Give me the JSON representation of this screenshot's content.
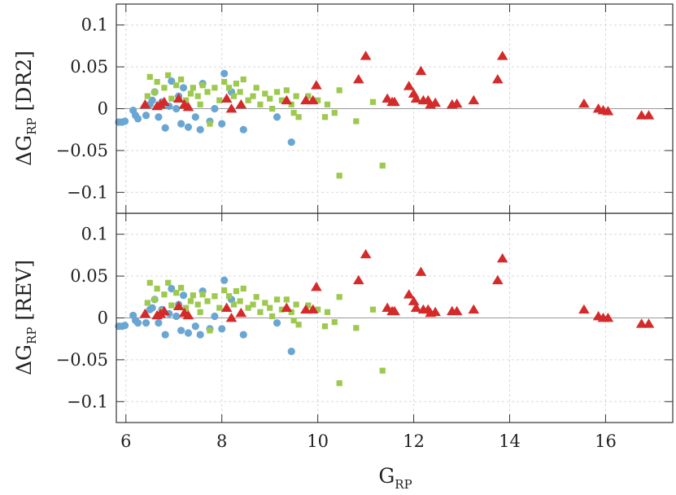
{
  "chart_data": [
    {
      "type": "scatter",
      "panel": "top",
      "ylabel": {
        "main": "ΔG",
        "sub": "RP",
        "suffix": " [DR2]"
      },
      "xlabel": "",
      "xlim": [
        5.8,
        17.4
      ],
      "ylim": [
        -0.125,
        0.125
      ],
      "xticks": [
        6,
        8,
        10,
        12,
        14,
        16
      ],
      "yticks": [
        0.1,
        0.05,
        0,
        -0.05,
        -0.1
      ],
      "ytick_labels": [
        "0.1",
        "0.05",
        "0",
        "−0.05",
        "−0.1"
      ],
      "grid": true,
      "zero_line": true,
      "series": [
        {
          "marker": "circle",
          "color": "#6aa6d3",
          "points": [
            [
              5.85,
              -0.016
            ],
            [
              5.92,
              -0.016
            ],
            [
              5.98,
              -0.015
            ],
            [
              6.15,
              -0.002
            ],
            [
              6.2,
              -0.008
            ],
            [
              6.25,
              -0.012
            ],
            [
              6.42,
              -0.008
            ],
            [
              6.5,
              0.005
            ],
            [
              6.55,
              0.01
            ],
            [
              6.6,
              0.02
            ],
            [
              6.68,
              -0.01
            ],
            [
              6.75,
              0.008
            ],
            [
              6.82,
              -0.023
            ],
            [
              6.9,
              0.003
            ],
            [
              6.95,
              0.033
            ],
            [
              7.05,
              0.0
            ],
            [
              7.1,
              0.015
            ],
            [
              7.15,
              -0.018
            ],
            [
              7.2,
              0.025
            ],
            [
              7.3,
              -0.022
            ],
            [
              7.45,
              -0.01
            ],
            [
              7.55,
              -0.025
            ],
            [
              7.6,
              0.03
            ],
            [
              7.75,
              -0.015
            ],
            [
              7.85,
              0.0
            ],
            [
              8.0,
              -0.018
            ],
            [
              8.05,
              0.042
            ],
            [
              8.2,
              0.02
            ],
            [
              8.45,
              -0.025
            ],
            [
              9.15,
              -0.01
            ],
            [
              9.45,
              -0.04
            ]
          ]
        },
        {
          "marker": "square",
          "color": "#9dc94f",
          "points": [
            [
              6.45,
              0.015
            ],
            [
              6.5,
              0.038
            ],
            [
              6.6,
              0.02
            ],
            [
              6.65,
              0.032
            ],
            [
              6.75,
              0.005
            ],
            [
              6.8,
              0.025
            ],
            [
              6.88,
              0.04
            ],
            [
              6.95,
              0.012
            ],
            [
              7.05,
              0.028
            ],
            [
              7.15,
              0.035
            ],
            [
              7.25,
              0.01
            ],
            [
              7.35,
              0.018
            ],
            [
              7.4,
              0.025
            ],
            [
              7.5,
              0.015
            ],
            [
              7.55,
              0.005
            ],
            [
              7.6,
              0.028
            ],
            [
              7.7,
              0.02
            ],
            [
              7.75,
              -0.018
            ],
            [
              7.85,
              0.025
            ],
            [
              7.95,
              0.01
            ],
            [
              8.05,
              0.032
            ],
            [
              8.15,
              0.025
            ],
            [
              8.25,
              0.015
            ],
            [
              8.3,
              0.03
            ],
            [
              8.38,
              0.02
            ],
            [
              8.45,
              0.035
            ],
            [
              8.55,
              0.01
            ],
            [
              8.65,
              0.015
            ],
            [
              8.72,
              0.025
            ],
            [
              8.8,
              0.005
            ],
            [
              8.9,
              0.018
            ],
            [
              9.0,
              0.012
            ],
            [
              9.05,
              0.0
            ],
            [
              9.15,
              0.02
            ],
            [
              9.25,
              0.01
            ],
            [
              9.35,
              0.022
            ],
            [
              9.45,
              0.005
            ],
            [
              9.5,
              -0.005
            ],
            [
              9.55,
              0.015
            ],
            [
              9.6,
              -0.01
            ],
            [
              9.8,
              0.015
            ],
            [
              10.0,
              0.01
            ],
            [
              10.15,
              -0.01
            ],
            [
              10.2,
              0.005
            ],
            [
              10.35,
              -0.005
            ],
            [
              10.45,
              0.022
            ],
            [
              10.45,
              -0.08
            ],
            [
              10.8,
              -0.015
            ],
            [
              11.15,
              0.008
            ],
            [
              11.35,
              -0.068
            ]
          ]
        },
        {
          "marker": "triangle",
          "color": "#d42a2a",
          "points": [
            [
              6.4,
              0.005
            ],
            [
              6.65,
              0.003
            ],
            [
              6.72,
              0.005
            ],
            [
              6.8,
              0.008
            ],
            [
              7.1,
              0.012
            ],
            [
              7.22,
              0.005
            ],
            [
              7.3,
              0.002
            ],
            [
              8.1,
              0.012
            ],
            [
              8.2,
              0.0
            ],
            [
              8.4,
              0.005
            ],
            [
              9.35,
              0.01
            ],
            [
              9.75,
              0.01
            ],
            [
              9.9,
              0.01
            ],
            [
              9.97,
              0.028
            ],
            [
              10.85,
              0.035
            ],
            [
              11.0,
              0.063
            ],
            [
              11.45,
              0.012
            ],
            [
              11.55,
              0.008
            ],
            [
              11.6,
              0.008
            ],
            [
              11.9,
              0.027
            ],
            [
              12.0,
              0.018
            ],
            [
              12.05,
              0.012
            ],
            [
              12.15,
              0.045
            ],
            [
              12.2,
              0.01
            ],
            [
              12.3,
              0.01
            ],
            [
              12.35,
              0.005
            ],
            [
              12.45,
              0.007
            ],
            [
              12.8,
              0.005
            ],
            [
              12.9,
              0.006
            ],
            [
              13.25,
              0.01
            ],
            [
              13.75,
              0.035
            ],
            [
              13.85,
              0.063
            ],
            [
              15.55,
              0.006
            ],
            [
              15.85,
              0.0
            ],
            [
              15.95,
              -0.002
            ],
            [
              16.05,
              -0.003
            ],
            [
              16.75,
              -0.008
            ],
            [
              16.9,
              -0.008
            ]
          ]
        }
      ]
    },
    {
      "type": "scatter",
      "panel": "bottom",
      "ylabel": {
        "main": "ΔG",
        "sub": "RP",
        "suffix": " [REV]"
      },
      "xlabel": {
        "main": "G",
        "sub": "RP"
      },
      "xlim": [
        5.8,
        17.4
      ],
      "ylim": [
        -0.125,
        0.125
      ],
      "xticks": [
        6,
        8,
        10,
        12,
        14,
        16
      ],
      "xtick_labels": [
        "6",
        "8",
        "10",
        "12",
        "14",
        "16"
      ],
      "yticks": [
        0.1,
        0.05,
        0,
        -0.05,
        -0.1
      ],
      "ytick_labels": [
        "0.1",
        "0.05",
        "0",
        "−0.05",
        "−0.1"
      ],
      "grid": true,
      "zero_line": true,
      "series": [
        {
          "marker": "circle",
          "color": "#6aa6d3",
          "points": [
            [
              5.85,
              -0.01
            ],
            [
              5.92,
              -0.01
            ],
            [
              5.98,
              -0.009
            ],
            [
              6.15,
              0.003
            ],
            [
              6.2,
              -0.003
            ],
            [
              6.25,
              -0.006
            ],
            [
              6.42,
              -0.006
            ],
            [
              6.5,
              0.01
            ],
            [
              6.55,
              0.012
            ],
            [
              6.6,
              0.022
            ],
            [
              6.68,
              -0.006
            ],
            [
              6.75,
              0.01
            ],
            [
              6.82,
              -0.02
            ],
            [
              6.9,
              0.005
            ],
            [
              6.95,
              0.035
            ],
            [
              7.05,
              0.002
            ],
            [
              7.1,
              0.016
            ],
            [
              7.15,
              -0.015
            ],
            [
              7.2,
              0.027
            ],
            [
              7.3,
              -0.018
            ],
            [
              7.45,
              -0.01
            ],
            [
              7.55,
              -0.02
            ],
            [
              7.6,
              0.032
            ],
            [
              7.75,
              -0.013
            ],
            [
              7.85,
              0.002
            ],
            [
              8.0,
              -0.013
            ],
            [
              8.05,
              0.045
            ],
            [
              8.2,
              0.022
            ],
            [
              8.45,
              -0.02
            ],
            [
              9.15,
              -0.006
            ],
            [
              9.45,
              -0.04
            ]
          ]
        },
        {
          "marker": "square",
          "color": "#9dc94f",
          "points": [
            [
              6.45,
              0.018
            ],
            [
              6.5,
              0.042
            ],
            [
              6.6,
              0.022
            ],
            [
              6.65,
              0.035
            ],
            [
              6.75,
              0.008
            ],
            [
              6.8,
              0.028
            ],
            [
              6.88,
              0.042
            ],
            [
              6.95,
              0.015
            ],
            [
              7.05,
              0.03
            ],
            [
              7.15,
              0.036
            ],
            [
              7.25,
              0.012
            ],
            [
              7.35,
              0.02
            ],
            [
              7.4,
              0.027
            ],
            [
              7.5,
              0.016
            ],
            [
              7.55,
              0.007
            ],
            [
              7.6,
              0.028
            ],
            [
              7.7,
              0.02
            ],
            [
              7.75,
              -0.015
            ],
            [
              7.85,
              0.026
            ],
            [
              7.95,
              0.012
            ],
            [
              8.05,
              0.033
            ],
            [
              8.15,
              0.026
            ],
            [
              8.25,
              0.016
            ],
            [
              8.3,
              0.032
            ],
            [
              8.38,
              0.02
            ],
            [
              8.45,
              0.035
            ],
            [
              8.55,
              0.012
            ],
            [
              8.65,
              0.016
            ],
            [
              8.72,
              0.025
            ],
            [
              8.8,
              0.007
            ],
            [
              8.9,
              0.018
            ],
            [
              9.0,
              0.012
            ],
            [
              9.05,
              0.002
            ],
            [
              9.15,
              0.022
            ],
            [
              9.25,
              0.01
            ],
            [
              9.35,
              0.022
            ],
            [
              9.45,
              0.007
            ],
            [
              9.5,
              -0.003
            ],
            [
              9.55,
              0.016
            ],
            [
              9.6,
              -0.008
            ],
            [
              9.8,
              0.015
            ],
            [
              10.0,
              0.01
            ],
            [
              10.15,
              -0.01
            ],
            [
              10.2,
              0.007
            ],
            [
              10.35,
              -0.005
            ],
            [
              10.45,
              0.025
            ],
            [
              10.45,
              -0.078
            ],
            [
              10.8,
              -0.012
            ],
            [
              11.15,
              0.01
            ],
            [
              11.35,
              -0.063
            ]
          ]
        },
        {
          "marker": "triangle",
          "color": "#d42a2a",
          "points": [
            [
              6.4,
              0.005
            ],
            [
              6.65,
              0.003
            ],
            [
              6.72,
              0.005
            ],
            [
              6.8,
              0.008
            ],
            [
              7.1,
              0.014
            ],
            [
              7.22,
              0.006
            ],
            [
              7.3,
              0.003
            ],
            [
              8.1,
              0.012
            ],
            [
              8.2,
              0.0
            ],
            [
              8.4,
              0.006
            ],
            [
              9.35,
              0.012
            ],
            [
              9.75,
              0.01
            ],
            [
              9.9,
              0.01
            ],
            [
              9.97,
              0.037
            ],
            [
              10.85,
              0.045
            ],
            [
              11.0,
              0.076
            ],
            [
              11.45,
              0.012
            ],
            [
              11.55,
              0.008
            ],
            [
              11.6,
              0.008
            ],
            [
              11.9,
              0.028
            ],
            [
              12.0,
              0.02
            ],
            [
              12.05,
              0.012
            ],
            [
              12.15,
              0.055
            ],
            [
              12.2,
              0.01
            ],
            [
              12.3,
              0.01
            ],
            [
              12.35,
              0.006
            ],
            [
              12.45,
              0.007
            ],
            [
              12.8,
              0.008
            ],
            [
              12.9,
              0.008
            ],
            [
              13.25,
              0.01
            ],
            [
              13.75,
              0.045
            ],
            [
              13.85,
              0.071
            ],
            [
              15.55,
              0.01
            ],
            [
              15.85,
              0.002
            ],
            [
              15.95,
              0.0
            ],
            [
              16.05,
              0.0
            ],
            [
              16.75,
              -0.007
            ],
            [
              16.9,
              -0.007
            ]
          ]
        }
      ]
    }
  ]
}
